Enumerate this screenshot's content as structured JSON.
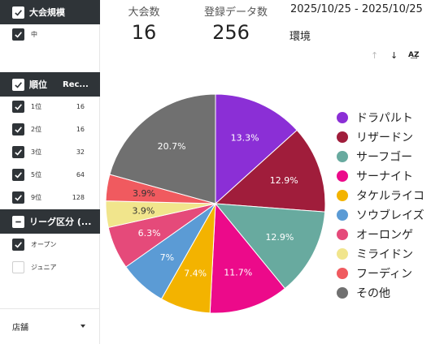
{
  "sidebar": {
    "tournament_scale": {
      "header": "大会規模",
      "options": [
        {
          "label": "中",
          "checked": true
        }
      ]
    },
    "ranking": {
      "header": "順位",
      "count_header": "Rec...",
      "rows": [
        {
          "label": "1位",
          "value": "16",
          "checked": true
        },
        {
          "label": "2位",
          "value": "16",
          "checked": true
        },
        {
          "label": "3位",
          "value": "32",
          "checked": true
        },
        {
          "label": "5位",
          "value": "64",
          "checked": true
        },
        {
          "label": "9位",
          "value": "128",
          "checked": true
        }
      ]
    },
    "league": {
      "header": "リーグ区分 (...",
      "options": [
        {
          "label": "オープン",
          "checked": true
        },
        {
          "label": "ジュニア",
          "checked": false
        }
      ]
    },
    "store_dropdown": {
      "label": "店舗"
    }
  },
  "scorecards": {
    "tournaments": {
      "label": "大会数",
      "value": "16"
    },
    "records": {
      "label": "登録データ数",
      "value": "256"
    }
  },
  "date_range": "2025/10/25 - 2025/10/25",
  "environment_label": "環境",
  "chart_data": {
    "type": "pie",
    "slices": [
      {
        "label": "ドラパルト",
        "value": 13.3,
        "display": "13.3%",
        "color": "#8b2fd6"
      },
      {
        "label": "リザードン",
        "value": 12.9,
        "display": "12.9%",
        "color": "#a01d3b"
      },
      {
        "label": "サーフゴー",
        "value": 12.9,
        "display": "12.9%",
        "color": "#68aa9f"
      },
      {
        "label": "サーナイト",
        "value": 11.7,
        "display": "11.7%",
        "color": "#ec0a8a"
      },
      {
        "label": "タケルライコ",
        "value": 7.4,
        "display": "7.4%",
        "color": "#f3b300"
      },
      {
        "label": "ソウブレイズ",
        "value": 7.0,
        "display": "7%",
        "color": "#5b9bd5"
      },
      {
        "label": "オーロンゲ",
        "value": 6.3,
        "display": "6.3%",
        "color": "#e54a7a"
      },
      {
        "label": "ミライドン",
        "value": 3.9,
        "display": "3.9%",
        "color": "#f1e58c"
      },
      {
        "label": "フーディン",
        "value": 3.9,
        "display": "3.9%",
        "color": "#f05a5f"
      },
      {
        "label": "その他",
        "value": 20.7,
        "display": "20.7%",
        "color": "#707070"
      }
    ],
    "legend_position": "right"
  }
}
